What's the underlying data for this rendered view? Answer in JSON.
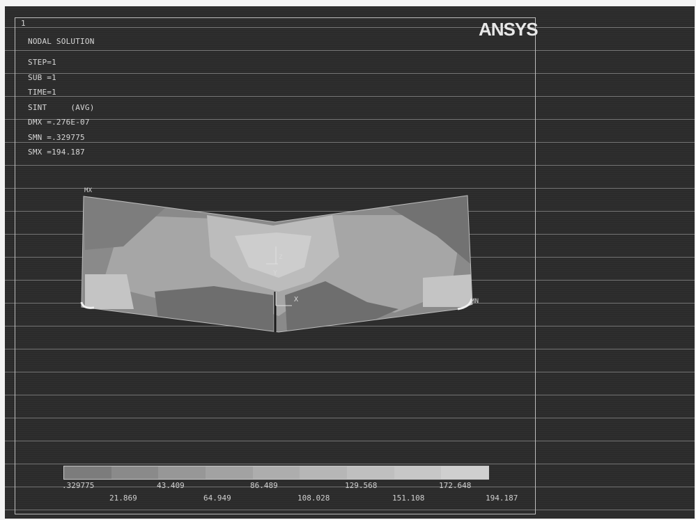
{
  "window": {
    "frame_number": "1",
    "logo": "ANSYS"
  },
  "info": {
    "title": "NODAL SOLUTION",
    "step": "STEP=1",
    "sub": "SUB =1",
    "time": "TIME=1",
    "result": "SINT     (AVG)",
    "dmx": "DMX =.276E-07",
    "smn": "SMN =.329775",
    "smx": "SMX =194.187"
  },
  "markers": {
    "mx": "MX",
    "mn": "MN"
  },
  "axes": {
    "y": "Y",
    "x": "X",
    "z": "Z"
  },
  "legend": {
    "colors": [
      "#7c7c7c",
      "#8a8a8a",
      "#979797",
      "#a2a2a2",
      "#adadad",
      "#b6b6b6",
      "#bfbfbf",
      "#c7c7c7",
      "#cfcfcf"
    ],
    "top_labels": [
      ".329775",
      "43.409",
      "86.489",
      "129.568",
      "172.648"
    ],
    "bottom_labels": [
      "21.869",
      "64.949",
      "108.028",
      "151.108",
      "194.187"
    ]
  }
}
